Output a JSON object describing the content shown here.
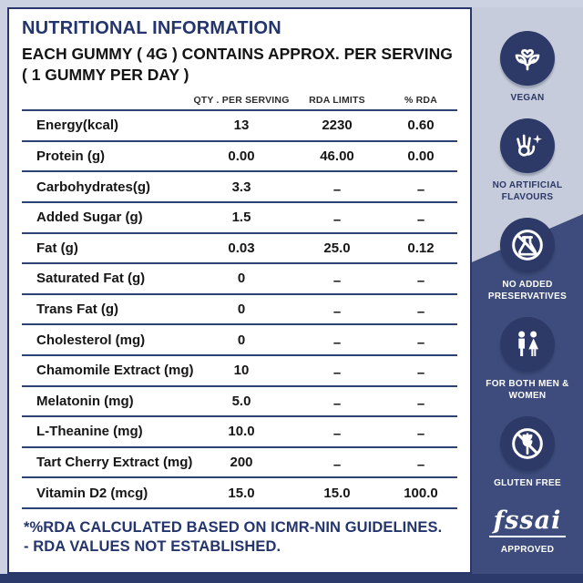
{
  "header": {
    "title": "NUTRITIONAL INFORMATION",
    "subtitle": "EACH GUMMY ( 4G ) CONTAINS APPROX. PER SERVING ( 1 GUMMY PER DAY )"
  },
  "table": {
    "columns": [
      "QTY . PER SERVING",
      "RDA LIMITS",
      "% RDA"
    ],
    "dash_char": "–",
    "rows": [
      {
        "label": "Energy(kcal)",
        "qty": "13",
        "rda": "2230",
        "pct": "0.60"
      },
      {
        "label": "Protein (g)",
        "qty": "0.00",
        "rda": "46.00",
        "pct": "0.00"
      },
      {
        "label": "Carbohydrates(g)",
        "qty": "3.3",
        "rda": "–",
        "pct": "–"
      },
      {
        "label": "Added Sugar (g)",
        "qty": "1.5",
        "rda": "–",
        "pct": "–"
      },
      {
        "label": "Fat (g)",
        "qty": "0.03",
        "rda": "25.0",
        "pct": "0.12"
      },
      {
        "label": "Saturated Fat (g)",
        "qty": "0",
        "rda": "–",
        "pct": "–"
      },
      {
        "label": "Trans Fat (g)",
        "qty": "0",
        "rda": "–",
        "pct": "–"
      },
      {
        "label": "Cholesterol (mg)",
        "qty": "0",
        "rda": "–",
        "pct": "–"
      },
      {
        "label": "Chamomile Extract (mg)",
        "qty": "10",
        "rda": "–",
        "pct": "–"
      },
      {
        "label": "Melatonin (mg)",
        "qty": "5.0",
        "rda": "–",
        "pct": "–"
      },
      {
        "label": "L-Theanine (mg)",
        "qty": "10.0",
        "rda": "–",
        "pct": "–"
      },
      {
        "label": "Tart Cherry Extract (mg)",
        "qty": "200",
        "rda": "–",
        "pct": "–"
      },
      {
        "label": "Vitamin D2 (mcg)",
        "qty": "15.0",
        "rda": "15.0",
        "pct": "100.0"
      }
    ]
  },
  "footnote": {
    "line1": "*%RDA CALCULATED BASED ON ICMR-NIN GUIDELINES.",
    "line2": "- RDA VALUES NOT ESTABLISHED."
  },
  "badges": [
    {
      "icon": "vegan-icon",
      "label": "VEGAN"
    },
    {
      "icon": "ok-hand-sparkle-icon",
      "label": "NO ARTIFICIAL FLAVOURS"
    },
    {
      "icon": "no-flask-icon",
      "label": "NO ADDED PRESERVATIVES"
    },
    {
      "icon": "men-women-icon",
      "label": "FOR BOTH MEN & WOMEN"
    },
    {
      "icon": "no-gluten-icon",
      "label": "GLUTEN FREE"
    },
    {
      "icon": "fssai-logo",
      "logo_text": "fssai",
      "label": "APPROVED"
    }
  ],
  "colors": {
    "accent_navy": "#24356e",
    "table_rule": "#2e4173",
    "page_border": "#cdd2e3",
    "strip_light": "#c6ccdb",
    "strip_dark": "#3d4c7c",
    "badge_circle": "#2d3966",
    "bottom_bar": "#2b3a6a",
    "text_dark": "#161616",
    "white": "#ffffff"
  }
}
